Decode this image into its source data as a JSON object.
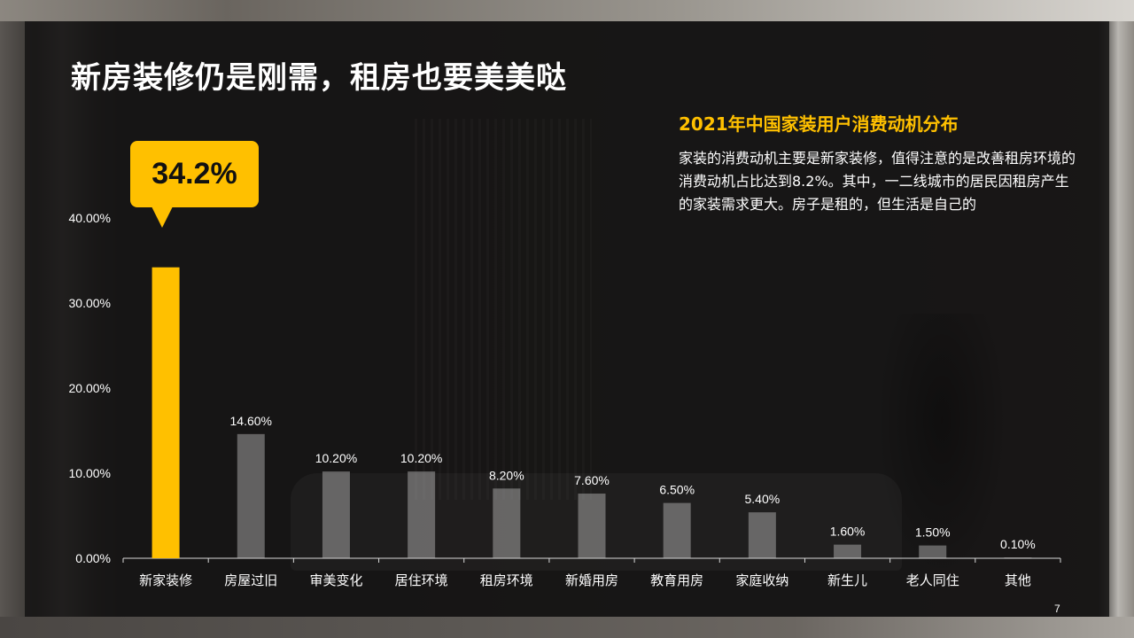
{
  "title": "新房装修仍是刚需，租房也要美美哒",
  "subtitle": "2021年中国家装用户消费动机分布",
  "description": "家装的消费动机主要是新家装修，值得注意的是改善租房环境的消费动机占比达到8.2%。其中，一二线城市的居民因租房产生的家装需求更大。房子是租的，但生活是自己的",
  "callout": "34.2%",
  "page_number": "7",
  "colors": {
    "highlight": "#ffc000",
    "bar": "#bfbfbf",
    "text": "#ffffff"
  },
  "chart_data": {
    "type": "bar",
    "categories": [
      "新家装修",
      "房屋过旧",
      "审美变化",
      "居住环境",
      "租房环境",
      "新婚用房",
      "教育用房",
      "家庭收纳",
      "新生儿",
      "老人同住",
      "其他"
    ],
    "values": [
      34.2,
      14.6,
      10.2,
      10.2,
      8.2,
      7.6,
      6.5,
      5.4,
      1.6,
      1.5,
      0.1
    ],
    "data_labels": [
      "",
      "14.60%",
      "10.20%",
      "10.20%",
      "8.20%",
      "7.60%",
      "6.50%",
      "5.40%",
      "1.60%",
      "1.50%",
      "0.10%"
    ],
    "highlight_index": 0,
    "y_ticks": [
      0,
      10,
      20,
      30,
      40
    ],
    "y_tick_labels": [
      "0.00%",
      "10.00%",
      "20.00%",
      "30.00%",
      "40.00%"
    ],
    "ylim": [
      0,
      40
    ],
    "grid": false,
    "xlabel": "",
    "ylabel": ""
  }
}
